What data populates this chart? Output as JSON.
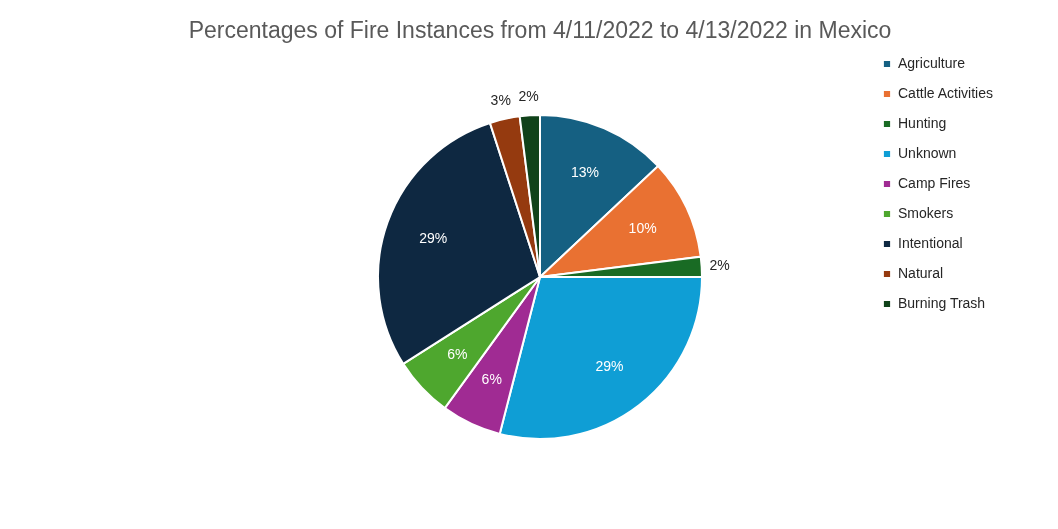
{
  "chart_data": {
    "type": "pie",
    "title": "Percentages of Fire Instances from 4/11/2022 to 4/13/2022 in Mexico",
    "categories": [
      "Agriculture",
      "Cattle Activities",
      "Hunting",
      "Unknown",
      "Camp Fires",
      "Smokers",
      "Intentional",
      "Natural",
      "Burning Trash"
    ],
    "values": [
      13,
      10,
      2,
      29,
      6,
      6,
      29,
      3,
      2
    ],
    "colors": [
      "#156082",
      "#e97132",
      "#196b24",
      "#0f9ed5",
      "#a02b93",
      "#4ea72e",
      "#0e2841",
      "#953a0f",
      "#10421a"
    ],
    "value_labels": [
      "13%",
      "10%",
      "2%",
      "29%",
      "6%",
      "6%",
      "29%",
      "3%",
      "2%"
    ],
    "legend": "right"
  }
}
